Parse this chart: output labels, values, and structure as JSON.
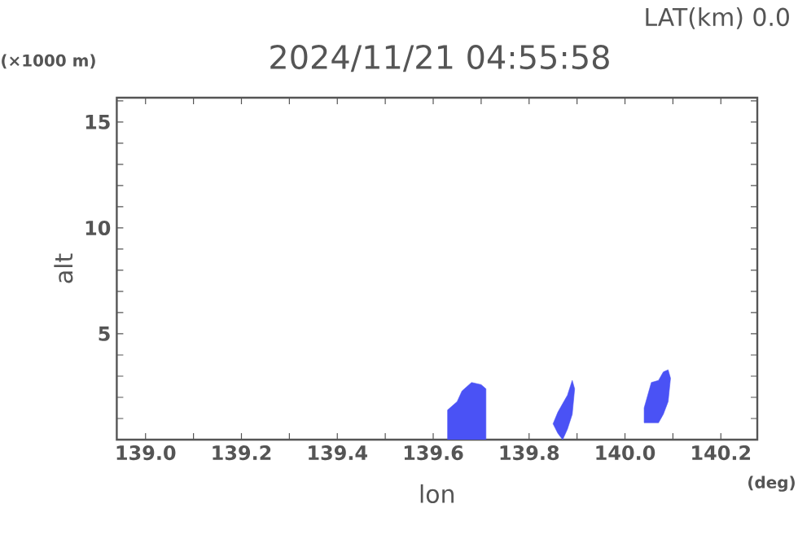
{
  "chart_data": {
    "type": "area",
    "title": "2024/11/21 04:55:58",
    "subtitle": "LAT(km) 0.0",
    "xlabel": "lon",
    "ylabel": "alt",
    "annotations": [
      "(×1000 m)",
      "(deg)"
    ],
    "xlim": [
      138.94,
      140.276
    ],
    "ylim": [
      0,
      16.15
    ],
    "xticks": [
      {
        "value": 139,
        "label": "139.0"
      },
      {
        "value": 139.1,
        "label": null
      },
      139.2,
      {
        "value": 139.3,
        "label": null
      },
      139.4,
      {
        "value": 139.5,
        "label": null
      },
      139.6,
      {
        "value": 139.7,
        "label": null
      },
      139.8,
      {
        "value": 139.9,
        "label": null
      },
      {
        "value": 140,
        "label": "140.0"
      },
      {
        "value": 140.1,
        "label": null
      },
      140.2
    ],
    "yticks": [
      {
        "value": 1,
        "label": null
      },
      {
        "value": 2,
        "label": null
      },
      {
        "value": 3,
        "label": null
      },
      {
        "value": 4,
        "label": null
      },
      5,
      {
        "value": 6,
        "label": null
      },
      {
        "value": 7,
        "label": null
      },
      {
        "value": 8,
        "label": null
      },
      {
        "value": 9,
        "label": null
      },
      10,
      {
        "value": 11,
        "label": null
      },
      {
        "value": 12,
        "label": null
      },
      {
        "value": 13,
        "label": null
      },
      {
        "value": 14,
        "label": null
      },
      15,
      {
        "value": 16,
        "label": null
      }
    ],
    "series": [
      {
        "color": "#4a52f5",
        "x": [
          139.63,
          139.63,
          139.65,
          139.66,
          139.68,
          139.7,
          139.71,
          139.71
        ],
        "values": [
          0,
          1.4,
          1.8,
          2.3,
          2.7,
          2.6,
          2.4,
          0
        ]
      },
      {
        "color": "#4a52f5",
        "x": [
          139.87,
          139.86,
          139.85,
          139.86,
          139.87,
          139.88,
          139.89,
          139.895,
          139.89,
          139.88
        ],
        "values": [
          0,
          0.3,
          0.75,
          1.3,
          1.7,
          2.1,
          2.8,
          2.4,
          1.2,
          0.5
        ]
      },
      {
        "color": "#4a52f5",
        "x": [
          140.04,
          140.04,
          140.055,
          140.07,
          140.08,
          140.09,
          140.095,
          140.09,
          140.08,
          140.07
        ],
        "values": [
          0.8,
          1.5,
          2.7,
          2.8,
          3.2,
          3.3,
          2.9,
          1.8,
          1.2,
          0.8
        ]
      }
    ]
  }
}
